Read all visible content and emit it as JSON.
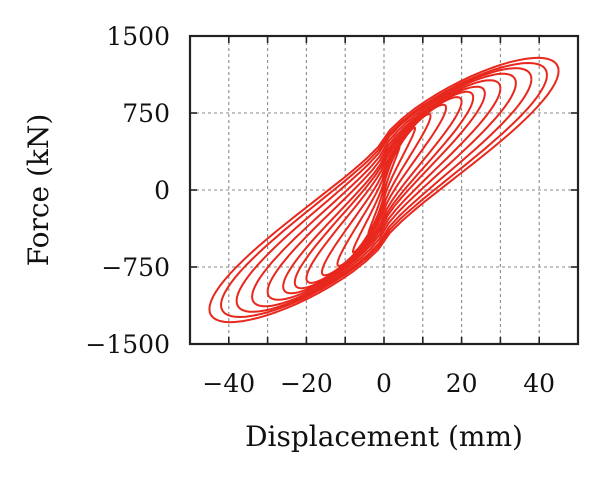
{
  "chart_data": {
    "type": "line",
    "title": "",
    "xlabel": "Displacement (mm)",
    "ylabel": "Force (kN)",
    "xlim": [
      -50,
      50
    ],
    "ylim": [
      -1500,
      1500
    ],
    "xticks": [
      -40,
      -20,
      0,
      20,
      40
    ],
    "yticks": [
      1500,
      750,
      0,
      -750,
      -1500
    ],
    "xtick_labels": [
      "−40",
      "−20",
      "0",
      "20",
      "40"
    ],
    "ytick_labels": [
      "1500",
      "750",
      "0",
      "−750",
      "−1500"
    ],
    "grid": true,
    "legend": "none",
    "line_color": "#e8271d",
    "series": [
      {
        "amplitude_mm": 4,
        "peak_force_kN": 420,
        "loop_half_width_kN": 40
      },
      {
        "amplitude_mm": 8,
        "peak_force_kN": 600,
        "loop_half_width_kN": 90
      },
      {
        "amplitude_mm": 12,
        "peak_force_kN": 720,
        "loop_half_width_kN": 150
      },
      {
        "amplitude_mm": 16,
        "peak_force_kN": 800,
        "loop_half_width_kN": 200
      },
      {
        "amplitude_mm": 20,
        "peak_force_kN": 860,
        "loop_half_width_kN": 250
      },
      {
        "amplitude_mm": 23,
        "peak_force_kN": 900,
        "loop_half_width_kN": 290
      },
      {
        "amplitude_mm": 26,
        "peak_force_kN": 940,
        "loop_half_width_kN": 320
      },
      {
        "amplitude_mm": 30,
        "peak_force_kN": 990,
        "loop_half_width_kN": 360
      },
      {
        "amplitude_mm": 34,
        "peak_force_kN": 1040,
        "loop_half_width_kN": 400
      },
      {
        "amplitude_mm": 38,
        "peak_force_kN": 1080,
        "loop_half_width_kN": 440
      },
      {
        "amplitude_mm": 42,
        "peak_force_kN": 1120,
        "loop_half_width_kN": 470
      },
      {
        "amplitude_mm": 45,
        "peak_force_kN": 1160,
        "loop_half_width_kN": 500
      }
    ]
  }
}
